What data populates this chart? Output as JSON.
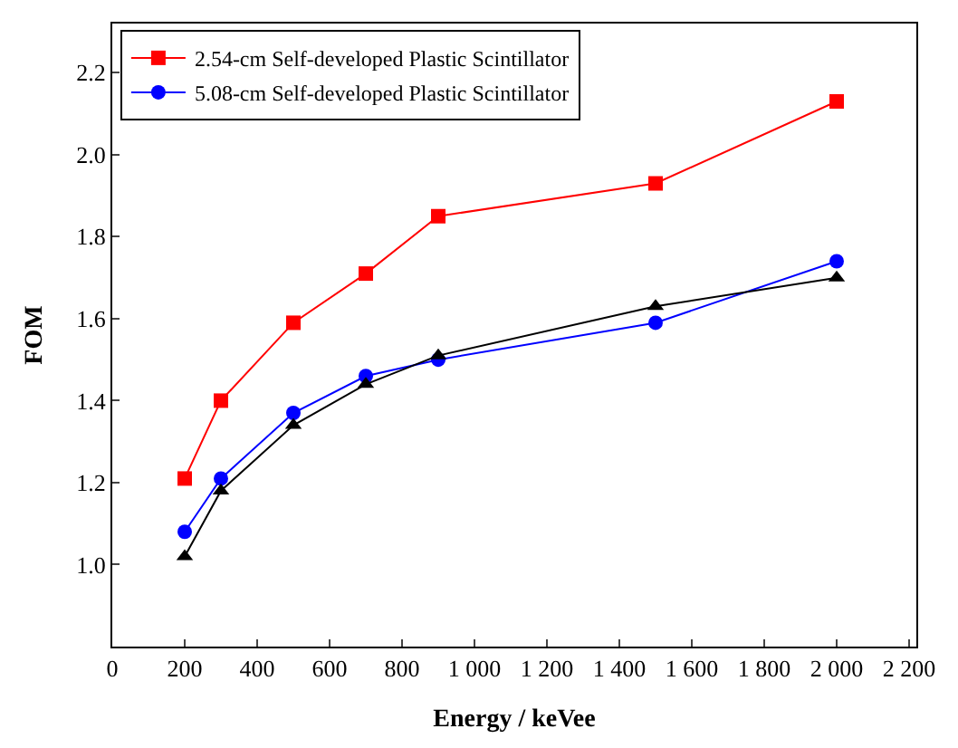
{
  "chart_data": {
    "type": "line",
    "xlabel": "Energy / keVee",
    "ylabel": "FOM",
    "x": [
      200,
      300,
      500,
      700,
      900,
      1500,
      2000
    ],
    "series": [
      {
        "name": "2.54-cm Self-developed Plastic Scintillator",
        "color": "#ff0000",
        "marker": "square",
        "values": [
          1.21,
          1.4,
          1.59,
          1.71,
          1.85,
          1.93,
          2.13
        ]
      },
      {
        "name": "5.08-cm Self-developed Plastic Scintillator",
        "color": "#0000ff",
        "marker": "circle",
        "values": [
          1.08,
          1.21,
          1.37,
          1.46,
          1.5,
          1.59,
          1.74
        ]
      },
      {
        "color": "#000000",
        "marker": "triangle",
        "values": [
          1.02,
          1.18,
          1.34,
          1.44,
          1.51,
          1.63,
          1.7
        ]
      }
    ],
    "xlim": [
      0,
      2220
    ],
    "xticks": [
      0,
      200,
      400,
      600,
      800,
      {
        "value": 1000,
        "label": "1 000"
      },
      {
        "value": 1200,
        "label": "1 200"
      },
      {
        "value": 1400,
        "label": "1 400"
      },
      {
        "value": 1600,
        "label": "1 600"
      },
      {
        "value": 1800,
        "label": "1 800"
      },
      {
        "value": 2000,
        "label": "2 000"
      },
      {
        "value": 2200,
        "label": "2 200"
      }
    ],
    "ylim": [
      0.8,
      2.32
    ],
    "yticks": [
      {
        "value": 1.0,
        "label": "1.0"
      },
      1.2,
      1.4,
      1.6,
      1.8,
      {
        "value": 2.0,
        "label": "2.0"
      },
      2.2
    ],
    "legend": "top left",
    "line_style": "solid"
  }
}
